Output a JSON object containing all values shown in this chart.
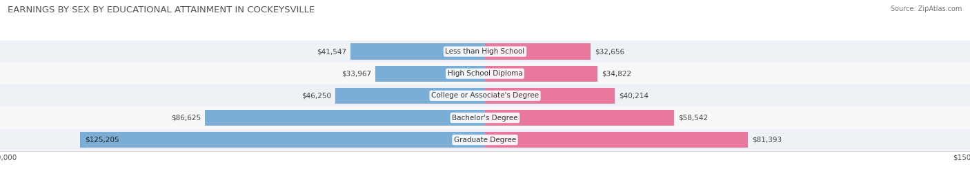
{
  "title": "EARNINGS BY SEX BY EDUCATIONAL ATTAINMENT IN COCKEYSVILLE",
  "source": "Source: ZipAtlas.com",
  "categories": [
    "Graduate Degree",
    "Bachelor's Degree",
    "College or Associate's Degree",
    "High School Diploma",
    "Less than High School"
  ],
  "male_values": [
    125205,
    86625,
    46250,
    33967,
    41547
  ],
  "female_values": [
    81393,
    58542,
    40214,
    34822,
    32656
  ],
  "male_color": "#7aaed6",
  "female_color": "#e8799c",
  "row_bg_colors": [
    "#e8edf2",
    "#f2f2f2"
  ],
  "xlim": 150000,
  "bar_height": 0.72,
  "figsize": [
    14.06,
    2.68
  ],
  "dpi": 100,
  "title_fontsize": 9.5,
  "label_fontsize": 7.5,
  "value_fontsize": 7.5,
  "tick_fontsize": 7.5,
  "legend_fontsize": 8.5
}
